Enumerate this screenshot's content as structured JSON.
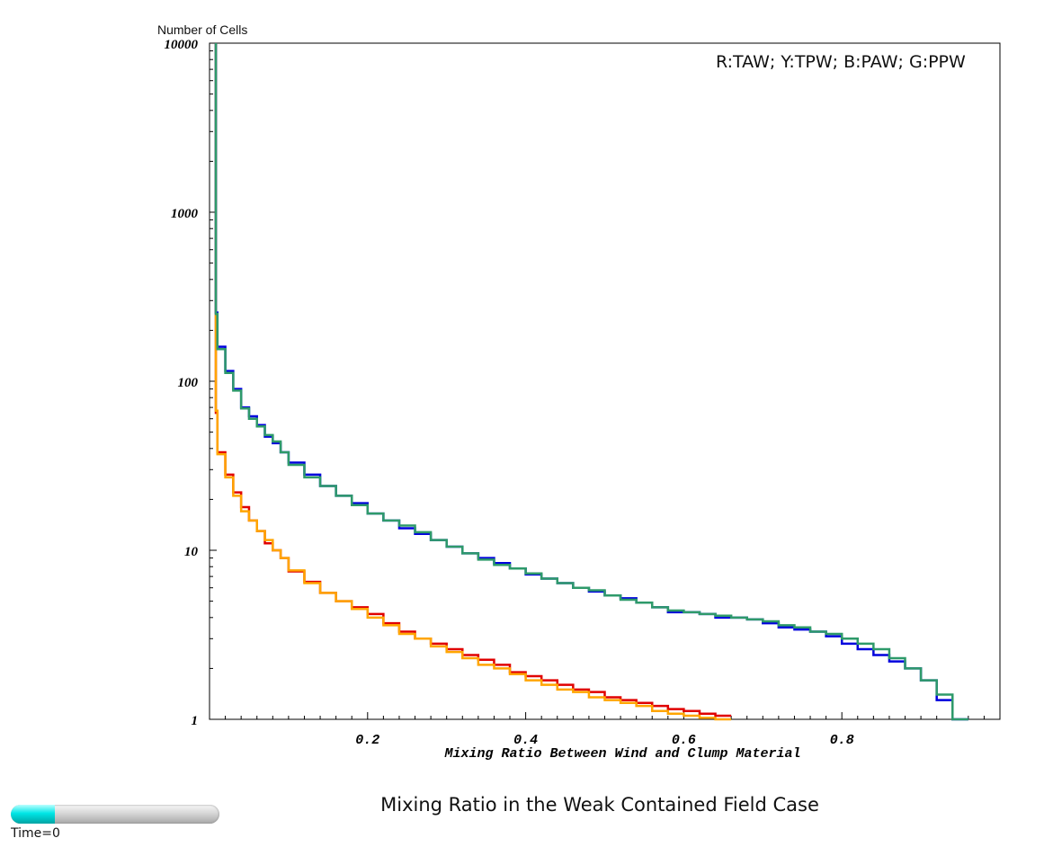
{
  "chart_data": {
    "type": "line",
    "ylabel": "Number of Cells",
    "xlabel": "Mixing Ratio Between Wind and Clump Material",
    "title": "Mixing Ratio in the Weak Contained Field Case",
    "legend_text": "R:TAW; Y:TPW; B:PAW; G:PPW",
    "legend_placement": "top-right",
    "y_scale": "log",
    "ylim": [
      1,
      10000
    ],
    "xlim": [
      0,
      1
    ],
    "y_ticks": [
      "1",
      "10",
      "100",
      "1000",
      "10000"
    ],
    "x_ticks": [
      "0.2",
      "0.4",
      "0.6",
      "0.8"
    ],
    "grid": false,
    "series": [
      {
        "name": "TAW",
        "color": "#e00000",
        "x": [
          0.01,
          0.02,
          0.03,
          0.04,
          0.05,
          0.06,
          0.07,
          0.08,
          0.09,
          0.1,
          0.12,
          0.14,
          0.16,
          0.18,
          0.2,
          0.22,
          0.24,
          0.26,
          0.28,
          0.3,
          0.32,
          0.34,
          0.36,
          0.38,
          0.4,
          0.42,
          0.44,
          0.46,
          0.48,
          0.5,
          0.52,
          0.54,
          0.56,
          0.58,
          0.6,
          0.62,
          0.64,
          0.66
        ],
        "y": [
          65,
          38,
          28,
          22,
          18,
          15,
          13,
          11,
          10,
          9,
          7.5,
          6.5,
          5.6,
          5.0,
          4.6,
          4.2,
          3.7,
          3.3,
          3.0,
          2.8,
          2.6,
          2.4,
          2.25,
          2.1,
          1.9,
          1.8,
          1.7,
          1.6,
          1.5,
          1.45,
          1.35,
          1.3,
          1.25,
          1.2,
          1.15,
          1.12,
          1.08,
          1.05
        ]
      },
      {
        "name": "TPW",
        "color": "#ffa500",
        "x": [
          0.01,
          0.02,
          0.03,
          0.04,
          0.05,
          0.06,
          0.07,
          0.08,
          0.09,
          0.1,
          0.12,
          0.14,
          0.16,
          0.18,
          0.2,
          0.22,
          0.24,
          0.26,
          0.28,
          0.3,
          0.32,
          0.34,
          0.36,
          0.38,
          0.4,
          0.42,
          0.44,
          0.46,
          0.48,
          0.5,
          0.52,
          0.54,
          0.56,
          0.58,
          0.6,
          0.62,
          0.64,
          0.66
        ],
        "y": [
          67,
          37,
          27,
          21,
          17,
          15,
          13,
          11.5,
          10,
          9,
          7.6,
          6.4,
          5.6,
          5.0,
          4.5,
          4.0,
          3.6,
          3.2,
          3.0,
          2.7,
          2.5,
          2.3,
          2.1,
          2.0,
          1.85,
          1.7,
          1.6,
          1.5,
          1.45,
          1.35,
          1.3,
          1.25,
          1.2,
          1.12,
          1.08,
          1.05,
          1.02,
          1.0
        ]
      },
      {
        "name": "PAW",
        "color": "#0000dd",
        "x": [
          0.01,
          0.02,
          0.03,
          0.04,
          0.05,
          0.06,
          0.07,
          0.08,
          0.09,
          0.1,
          0.12,
          0.14,
          0.16,
          0.18,
          0.2,
          0.22,
          0.24,
          0.26,
          0.28,
          0.3,
          0.32,
          0.34,
          0.36,
          0.38,
          0.4,
          0.42,
          0.44,
          0.46,
          0.48,
          0.5,
          0.52,
          0.54,
          0.56,
          0.58,
          0.6,
          0.62,
          0.64,
          0.66,
          0.68,
          0.7,
          0.72,
          0.74,
          0.76,
          0.78,
          0.8,
          0.82,
          0.84,
          0.86,
          0.88,
          0.9,
          0.92,
          0.94,
          0.96
        ],
        "y": [
          255,
          160,
          115,
          90,
          70,
          62,
          55,
          47,
          43,
          38,
          33,
          28,
          24,
          21,
          19,
          16.5,
          15,
          13.5,
          12.5,
          11.5,
          10.5,
          9.6,
          9.0,
          8.4,
          7.8,
          7.2,
          6.8,
          6.4,
          6.0,
          5.7,
          5.4,
          5.2,
          4.9,
          4.6,
          4.3,
          4.3,
          4.2,
          4.0,
          4.0,
          3.9,
          3.7,
          3.5,
          3.4,
          3.3,
          3.1,
          2.8,
          2.6,
          2.4,
          2.2,
          2.0,
          1.7,
          1.3,
          1.0
        ]
      },
      {
        "name": "PPW",
        "color": "#2e9a6a",
        "x": [
          0.01,
          0.02,
          0.03,
          0.04,
          0.05,
          0.06,
          0.07,
          0.08,
          0.09,
          0.1,
          0.12,
          0.14,
          0.16,
          0.18,
          0.2,
          0.22,
          0.24,
          0.26,
          0.28,
          0.3,
          0.32,
          0.34,
          0.36,
          0.38,
          0.4,
          0.42,
          0.44,
          0.46,
          0.48,
          0.5,
          0.52,
          0.54,
          0.56,
          0.58,
          0.6,
          0.62,
          0.64,
          0.66,
          0.68,
          0.7,
          0.72,
          0.74,
          0.76,
          0.78,
          0.8,
          0.82,
          0.84,
          0.86,
          0.88,
          0.9,
          0.92,
          0.94,
          0.96
        ],
        "y": [
          250,
          155,
          112,
          88,
          69,
          60,
          54,
          48,
          44,
          38,
          32,
          27,
          24,
          21,
          18.5,
          16.5,
          15,
          14,
          12.8,
          11.5,
          10.5,
          9.6,
          8.8,
          8.2,
          7.8,
          7.3,
          6.8,
          6.4,
          6.0,
          5.8,
          5.4,
          5.1,
          4.9,
          4.6,
          4.4,
          4.3,
          4.2,
          4.1,
          4.0,
          3.9,
          3.8,
          3.6,
          3.5,
          3.3,
          3.2,
          3.0,
          2.8,
          2.6,
          2.3,
          2.0,
          1.7,
          1.4,
          1.0
        ]
      }
    ]
  },
  "time_slider": {
    "label": "Time=0",
    "fill_fraction": 0.21
  }
}
